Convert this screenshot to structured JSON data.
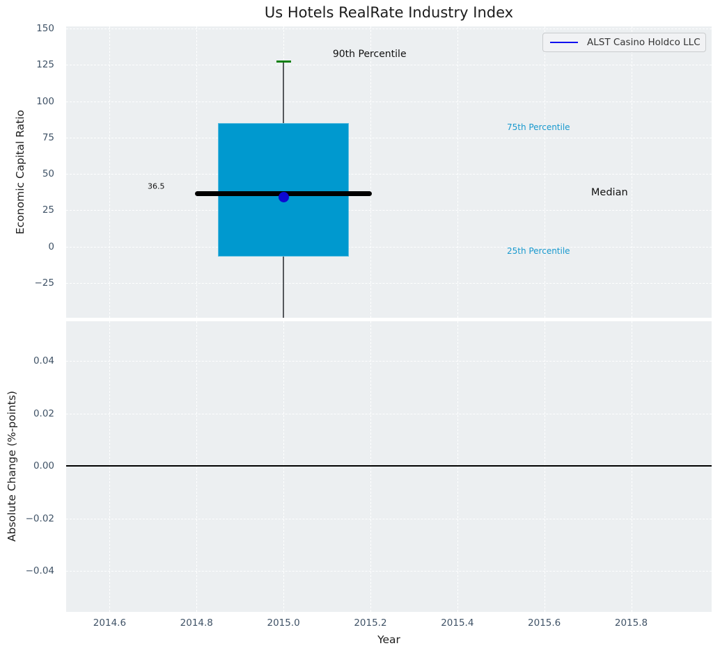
{
  "title": "Us Hotels RealRate Industry Index",
  "legend": {
    "label": "ALST Casino Holdco LLC",
    "line_color": "#0f0fef"
  },
  "colors": {
    "figure_bg": "#ffffff",
    "axes_bg": "#eceff1",
    "grid": "#ffffff",
    "box_fill": "#0099cf",
    "median_line": "#000000",
    "whisker": "#55585c",
    "cap": "#0f7f0f",
    "marker": "#0d08d2",
    "tick_label": "#3f5266",
    "axis_label": "#1c1c1c",
    "percentile_label": "#1899ce",
    "zero_line": "#000000"
  },
  "chart_data": {
    "type": "boxplot",
    "title": "Us Hotels RealRate Industry Index",
    "xlabel": "Year",
    "xlim": [
      2014.5,
      2015.985
    ],
    "xticks": [
      2014.6,
      2014.8,
      2015.0,
      2015.2,
      2015.4,
      2015.6,
      2015.8
    ],
    "xtick_labels": [
      "2014.6",
      "2014.8",
      "2015.0",
      "2015.2",
      "2015.4",
      "2015.6",
      "2015.8"
    ],
    "grid": true,
    "legend_position": "upper right",
    "subplots": [
      {
        "name": "economic-capital-ratio",
        "ylabel": "Economic Capital Ratio",
        "ylim": [
          -49,
          151.5
        ],
        "yticks": [
          150,
          125,
          100,
          75,
          50,
          25,
          0,
          -25
        ],
        "ytick_labels": [
          "150",
          "125",
          "100",
          "75",
          "50",
          "25",
          "0",
          "−25"
        ],
        "box": {
          "x": 2015.0,
          "p90": 127.4,
          "p75": 85,
          "median": 36.5,
          "p25": -7,
          "whisker_low_clipped": true,
          "box_half_width": 0.1505,
          "median_half_width": 0.204,
          "cap_half_width": 0.017
        },
        "series_marker": {
          "name": "ALST Casino Holdco LLC",
          "x": 2015.0,
          "y": 34
        },
        "annotations": [
          {
            "text": "90th Percentile",
            "x": 2015.198,
            "y": 132.5,
            "color": "#111111",
            "size": 14,
            "anchor": "center"
          },
          {
            "text": "75th Percentile",
            "x": 2015.514,
            "y": 82,
            "color": "#1899ce",
            "size": 12,
            "anchor": "left"
          },
          {
            "text": "Median",
            "x": 2015.75,
            "y": 37,
            "color": "#111111",
            "size": 14.5,
            "anchor": "center"
          },
          {
            "text": "25th Percentile",
            "x": 2015.514,
            "y": -3,
            "color": "#1899ce",
            "size": 12,
            "anchor": "left"
          },
          {
            "text": "36.5",
            "x": 2014.707,
            "y": 41.5,
            "color": "#111111",
            "size": 11,
            "anchor": "center"
          }
        ]
      },
      {
        "name": "absolute-change",
        "ylabel": "Absolute Change (%-points)",
        "ylim": [
          -0.0556,
          0.0551
        ],
        "yticks": [
          0.04,
          0.02,
          0.0,
          -0.02,
          -0.04
        ],
        "ytick_labels": [
          "0.04",
          "0.02",
          "0.00",
          "−0.02",
          "−0.04"
        ],
        "zero_line": true
      }
    ]
  }
}
